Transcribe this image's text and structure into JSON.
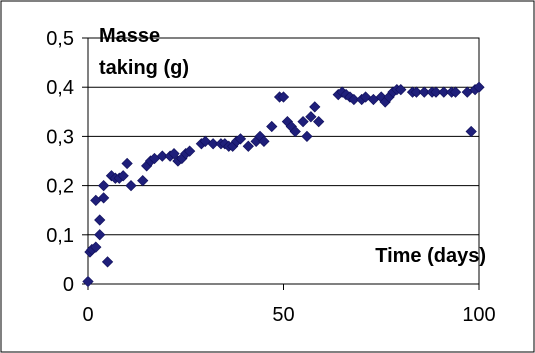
{
  "chart_data": {
    "type": "scatter",
    "title": "",
    "xlabel": "Time (days)",
    "ylabel": "Masse taking (g)",
    "ylabel_lines": [
      "Masse",
      "taking (g)"
    ],
    "xlim": [
      0,
      100
    ],
    "ylim": [
      0,
      0.5
    ],
    "x_ticks": [
      0,
      50,
      100
    ],
    "x_tick_labels": [
      "0",
      "50",
      "100"
    ],
    "y_ticks": [
      0,
      0.1,
      0.2,
      0.3,
      0.4,
      0.5
    ],
    "y_tick_labels": [
      "0",
      "0,1",
      "0,2",
      "0,3",
      "0,4",
      "0,5"
    ],
    "grid": "horizontal",
    "legend": "none",
    "colors": {
      "marker": "#1f1f7a",
      "grid": "#000000",
      "axis": "#000000",
      "frame": "#000000"
    },
    "series": [
      {
        "x": [
          0,
          0.5,
          1,
          2,
          2,
          3,
          3,
          4,
          4,
          5,
          6,
          7,
          8,
          9,
          10,
          11,
          14,
          15,
          16,
          17,
          19,
          21,
          22,
          23,
          24,
          25,
          26,
          29,
          30,
          32,
          34,
          35,
          36,
          37,
          38,
          39,
          41,
          43,
          44,
          45,
          47,
          49,
          50,
          51,
          52,
          53,
          55,
          56,
          57,
          58,
          59,
          64,
          65,
          66,
          67,
          68,
          70,
          71,
          73,
          75,
          76,
          77,
          78,
          79,
          80,
          83,
          84,
          86,
          88,
          89,
          91,
          93,
          94,
          97,
          98,
          99,
          100
        ],
        "y": [
          0.005,
          0.065,
          0.07,
          0.075,
          0.17,
          0.1,
          0.13,
          0.2,
          0.175,
          0.045,
          0.22,
          0.215,
          0.215,
          0.22,
          0.245,
          0.2,
          0.21,
          0.24,
          0.25,
          0.255,
          0.26,
          0.26,
          0.265,
          0.25,
          0.255,
          0.265,
          0.27,
          0.285,
          0.29,
          0.285,
          0.285,
          0.285,
          0.28,
          0.28,
          0.29,
          0.295,
          0.28,
          0.29,
          0.3,
          0.29,
          0.32,
          0.38,
          0.38,
          0.33,
          0.32,
          0.31,
          0.33,
          0.3,
          0.34,
          0.36,
          0.33,
          0.385,
          0.39,
          0.385,
          0.38,
          0.375,
          0.375,
          0.38,
          0.375,
          0.38,
          0.37,
          0.38,
          0.39,
          0.395,
          0.395,
          0.39,
          0.39,
          0.39,
          0.39,
          0.39,
          0.39,
          0.39,
          0.39,
          0.39,
          0.31,
          0.395,
          0.4
        ]
      }
    ]
  }
}
